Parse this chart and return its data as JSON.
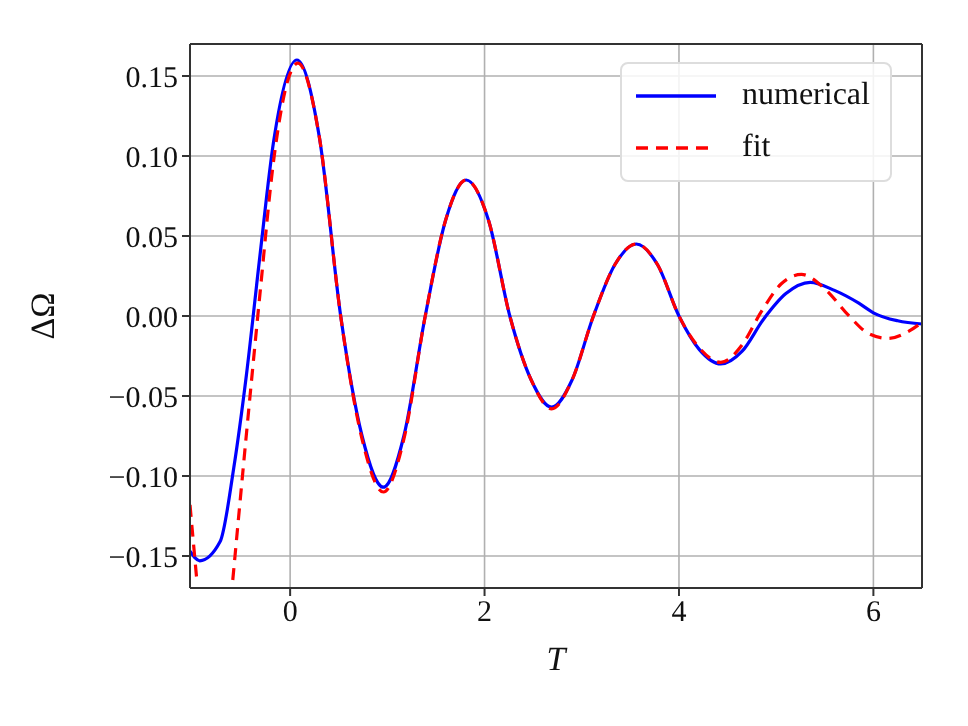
{
  "chart_data": {
    "type": "line",
    "xlabel": "T",
    "ylabel": "ΔΩ",
    "xlim": [
      -1.03,
      6.5
    ],
    "ylim": [
      -0.17,
      0.17
    ],
    "xticks": [
      0,
      2,
      4,
      6
    ],
    "yticks": [
      {
        "value": -0.15,
        "label": "−0.15"
      },
      {
        "value": -0.1,
        "label": "−0.10"
      },
      {
        "value": -0.05,
        "label": "−0.05"
      },
      {
        "value": 0,
        "label": "0.00"
      },
      {
        "value": 0.05,
        "label": "0.05"
      },
      {
        "value": 0.1,
        "label": "0.10"
      },
      {
        "value": 0.15,
        "label": "0.15"
      }
    ],
    "grid": true,
    "legend": "top right",
    "marker": "none",
    "series": [
      {
        "name": "numerical",
        "color": "#0000ff",
        "line_style": "solid",
        "x": [
          -1.03,
          -0.93,
          -0.72,
          -0.58,
          -0.45,
          -0.31,
          -0.17,
          0.07,
          0.3,
          0.52,
          0.74,
          0.96,
          1.17,
          1.39,
          1.6,
          1.81,
          2.04,
          2.26,
          2.48,
          2.69,
          2.9,
          3.12,
          3.34,
          3.56,
          3.78,
          4.0,
          4.21,
          4.43,
          4.65,
          4.87,
          5.1,
          5.35,
          5.6,
          5.85,
          6.0,
          6.25,
          6.5
        ],
        "values": [
          -0.147,
          -0.153,
          -0.141,
          -0.095,
          -0.037,
          0.038,
          0.109,
          0.16,
          0.112,
          0,
          -0.075,
          -0.107,
          -0.075,
          0,
          0.06,
          0.085,
          0.06,
          0,
          -0.04,
          -0.057,
          -0.04,
          0,
          0.032,
          0.045,
          0.032,
          0,
          -0.021,
          -0.03,
          -0.022,
          -0.002,
          0.014,
          0.021,
          0.016,
          0.008,
          0.002,
          -0.003,
          -0.005
        ]
      },
      {
        "name": "fit",
        "color": "#ff0000",
        "line_style": "dashed",
        "x": [
          -1.03,
          -0.99,
          -0.96,
          -0.78,
          -0.59,
          -0.45,
          -0.31,
          -0.17,
          -0.03,
          0.08,
          0.3,
          0.52,
          0.74,
          0.96,
          1.17,
          1.39,
          1.6,
          1.81,
          2.04,
          2.26,
          2.48,
          2.69,
          2.9,
          3.12,
          3.34,
          3.56,
          3.78,
          4.0,
          4.21,
          4.43,
          4.65,
          4.85,
          5.05,
          5.26,
          5.5,
          5.75,
          5.95,
          6.15,
          6.35,
          6.5
        ],
        "values": [
          -0.118,
          -0.145,
          -0.165,
          null,
          -0.165,
          -0.074,
          0.014,
          0.097,
          0.146,
          0.158,
          0.112,
          0,
          -0.077,
          -0.11,
          -0.077,
          0,
          0.06,
          0.085,
          0.06,
          0,
          -0.04,
          -0.058,
          -0.04,
          0,
          0.032,
          0.045,
          0.032,
          0,
          -0.02,
          -0.029,
          -0.018,
          0.003,
          0.02,
          0.026,
          0.017,
          0,
          -0.011,
          -0.014,
          -0.01,
          -0.004
        ]
      }
    ]
  }
}
